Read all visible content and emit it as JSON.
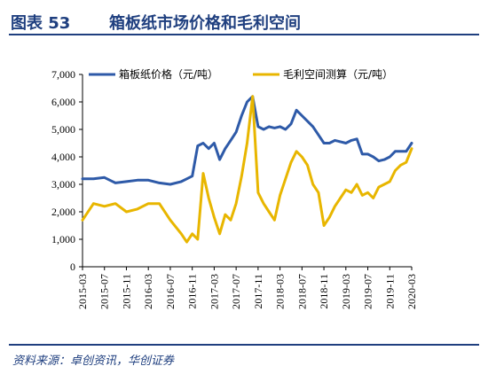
{
  "header": {
    "figure_label": "图表 53",
    "figure_title": "箱板纸市场价格和毛利空间"
  },
  "source": "资料来源：卓创资讯，华创证券",
  "chart_data": {
    "type": "line",
    "ylim": [
      0,
      7000
    ],
    "yticks": [
      0,
      1000,
      2000,
      3000,
      4000,
      5000,
      6000,
      7000
    ],
    "ytick_labels": [
      "0",
      "1,000",
      "2,000",
      "3,000",
      "4,000",
      "5,000",
      "6,000",
      "7,000"
    ],
    "xticks": [
      "2015-03",
      "2015-07",
      "2015-11",
      "2016-03",
      "2016-07",
      "2016-11",
      "2017-03",
      "2017-07",
      "2017-11",
      "2018-03",
      "2018-07",
      "2018-11",
      "2019-03",
      "2019-07",
      "2019-11",
      "2020-03"
    ],
    "x": [
      "2015-03",
      "2015-05",
      "2015-07",
      "2015-09",
      "2015-11",
      "2016-01",
      "2016-03",
      "2016-05",
      "2016-07",
      "2016-09",
      "2016-10",
      "2016-11",
      "2016-12",
      "2017-01",
      "2017-02",
      "2017-03",
      "2017-04",
      "2017-05",
      "2017-06",
      "2017-07",
      "2017-08",
      "2017-09",
      "2017-10",
      "2017-11",
      "2017-12",
      "2018-01",
      "2018-02",
      "2018-03",
      "2018-04",
      "2018-05",
      "2018-06",
      "2018-07",
      "2018-08",
      "2018-09",
      "2018-10",
      "2018-11",
      "2018-12",
      "2019-01",
      "2019-02",
      "2019-03",
      "2019-04",
      "2019-05",
      "2019-06",
      "2019-07",
      "2019-08",
      "2019-09",
      "2019-10",
      "2019-11",
      "2019-12",
      "2020-01",
      "2020-02",
      "2020-03"
    ],
    "series": [
      {
        "name": "箱板纸价格（元/吨）",
        "color": "#2e5aa8",
        "values": [
          3200,
          3200,
          3250,
          3050,
          3100,
          3150,
          3150,
          3050,
          3000,
          3100,
          3200,
          3300,
          4400,
          4500,
          4300,
          4500,
          3900,
          4300,
          4600,
          4900,
          5500,
          6000,
          6200,
          5100,
          5000,
          5100,
          5050,
          5100,
          5000,
          5200,
          5700,
          5500,
          5300,
          5100,
          4800,
          4500,
          4500,
          4600,
          4550,
          4500,
          4600,
          4650,
          4100,
          4100,
          4000,
          3850,
          3900,
          4000,
          4200,
          4200,
          4200,
          4500
        ]
      },
      {
        "name": "毛利空间测算（元/吨）",
        "color": "#e8b600",
        "values": [
          1700,
          2300,
          2200,
          2300,
          2000,
          2100,
          2300,
          2300,
          1700,
          1200,
          900,
          1200,
          1000,
          3400,
          2500,
          1800,
          1200,
          1900,
          1700,
          2300,
          3300,
          4500,
          6200,
          2700,
          2300,
          2000,
          1700,
          2600,
          3200,
          3800,
          4200,
          4000,
          3700,
          3000,
          2700,
          1500,
          1800,
          2200,
          2500,
          2800,
          2700,
          3000,
          2600,
          2700,
          2500,
          2900,
          3000,
          3100,
          3500,
          3700,
          3800,
          4300
        ]
      }
    ]
  }
}
